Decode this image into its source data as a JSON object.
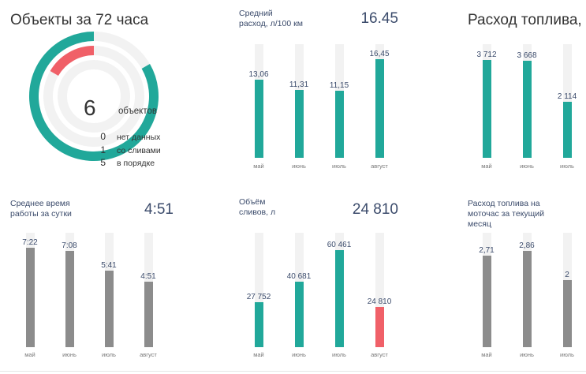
{
  "objects": {
    "title": "Объекты за 72 часа",
    "count": "6",
    "count_label": "объектов",
    "legend": [
      {
        "num": "0",
        "label": "нет данных"
      },
      {
        "num": "1",
        "label": "со сливами"
      },
      {
        "num": "5",
        "label": "в порядке"
      }
    ],
    "donut": {
      "total": 6,
      "ok": 5,
      "drain": 1,
      "no_data": 0
    },
    "colors": {
      "ok": "#21a89a",
      "drain": "#f06068",
      "track": "#f2f2f2"
    }
  },
  "chart_data": [
    {
      "type": "bar",
      "title": "Средний\nрасход, л/100 км",
      "summary": "16.45",
      "categories": [
        "май",
        "июнь",
        "июль",
        "август"
      ],
      "labels": [
        "13,06",
        "11,31",
        "11,15",
        "16,45"
      ],
      "values": [
        13.06,
        11.31,
        11.15,
        16.45
      ],
      "colors": [
        "#21a89a",
        "#21a89a",
        "#21a89a",
        "#21a89a"
      ],
      "ylim": [
        0,
        19
      ]
    },
    {
      "type": "bar",
      "title": "Расход топлива, л",
      "summary": "",
      "categories": [
        "май",
        "июнь",
        "июль"
      ],
      "labels": [
        "3 712",
        "3 668",
        "2 114"
      ],
      "values": [
        3712,
        3668,
        2114
      ],
      "colors": [
        "#21a89a",
        "#21a89a",
        "#21a89a"
      ],
      "ylim": [
        0,
        4300
      ]
    },
    {
      "type": "bar",
      "title": "Среднее время\nработы за сутки",
      "summary": "4:51",
      "categories": [
        "май",
        "июнь",
        "июль",
        "август"
      ],
      "labels": [
        "7:22",
        "7:08",
        "5:41",
        "4:51"
      ],
      "values": [
        442,
        428,
        341,
        291
      ],
      "colors": [
        "#8c8c8c",
        "#8c8c8c",
        "#8c8c8c",
        "#8c8c8c"
      ],
      "ylim": [
        0,
        510
      ]
    },
    {
      "type": "bar",
      "title": "Объём\nсливов, л",
      "summary": "24 810",
      "categories": [
        "май",
        "июнь",
        "июль",
        "август"
      ],
      "labels": [
        "27 752",
        "40 681",
        "60 461",
        "24 810"
      ],
      "values": [
        27752,
        40681,
        60461,
        24810
      ],
      "colors": [
        "#21a89a",
        "#21a89a",
        "#21a89a",
        "#f06068"
      ],
      "ylim": [
        0,
        71000
      ]
    },
    {
      "type": "bar",
      "title": "Расход топлива на\nмоточас за текущий\nмесяц",
      "summary": "",
      "categories": [
        "май",
        "июнь",
        "июль"
      ],
      "labels": [
        "2,71",
        "2,86",
        "2"
      ],
      "values": [
        2.71,
        2.86,
        2.0
      ],
      "colors": [
        "#8c8c8c",
        "#8c8c8c",
        "#8c8c8c"
      ],
      "ylim": [
        0,
        3.4
      ]
    }
  ]
}
